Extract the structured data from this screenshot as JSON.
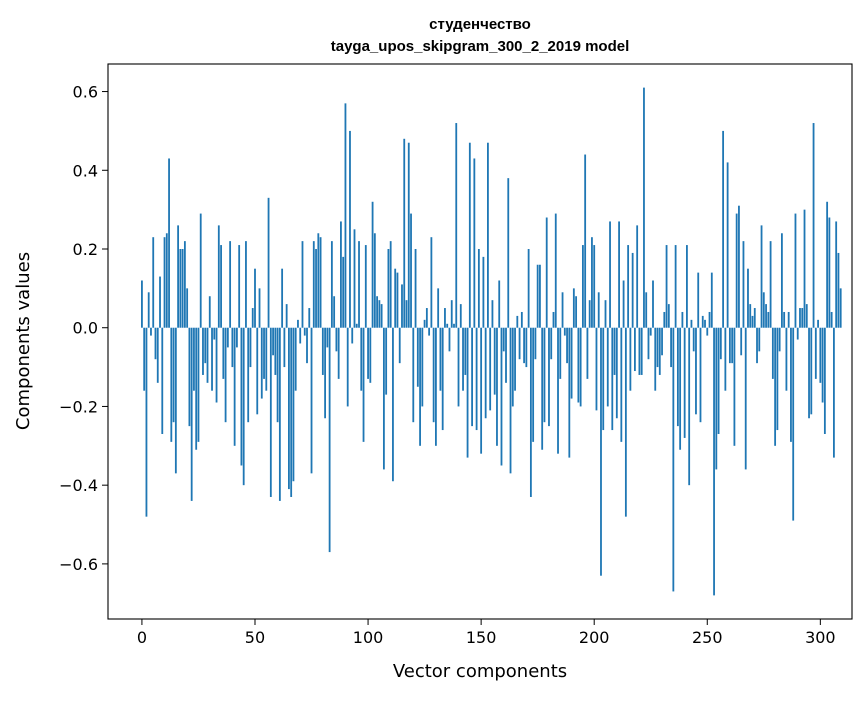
{
  "chart_data": {
    "type": "bar",
    "title_line1": "студенчество",
    "title_line2": "tayga_upos_skipgram_300_2_2019 model",
    "xlabel": "Vector components",
    "ylabel": "Components values",
    "xlim": [
      -15,
      314
    ],
    "ylim": [
      -0.74,
      0.67
    ],
    "xticks": [
      0,
      50,
      100,
      150,
      200,
      250,
      300
    ],
    "xtick_labels": [
      "0",
      "50",
      "100",
      "150",
      "200",
      "250",
      "300"
    ],
    "yticks": [
      -0.6,
      -0.4,
      -0.2,
      0.0,
      0.2,
      0.4,
      0.6
    ],
    "ytick_labels": [
      "−0.6",
      "−0.4",
      "−0.2",
      "0.0",
      "0.2",
      "0.4",
      "0.6"
    ],
    "grid": false,
    "legend": "none",
    "bar_color": "#1f77b4",
    "values": [
      0.12,
      -0.16,
      -0.48,
      0.09,
      -0.02,
      0.23,
      -0.08,
      -0.14,
      0.13,
      -0.27,
      0.23,
      0.24,
      0.43,
      -0.29,
      -0.24,
      -0.37,
      0.26,
      0.2,
      0.2,
      0.22,
      0.1,
      -0.25,
      -0.44,
      -0.16,
      -0.31,
      -0.29,
      0.29,
      -0.12,
      -0.09,
      -0.14,
      0.08,
      -0.16,
      -0.03,
      -0.19,
      0.26,
      0.21,
      -0.13,
      -0.24,
      -0.05,
      0.22,
      -0.1,
      -0.3,
      -0.05,
      0.21,
      -0.35,
      -0.4,
      0.22,
      -0.24,
      -0.1,
      0.05,
      0.15,
      -0.22,
      0.1,
      -0.18,
      -0.13,
      -0.16,
      0.33,
      -0.43,
      -0.07,
      -0.12,
      -0.24,
      -0.44,
      0.15,
      -0.1,
      0.06,
      -0.41,
      -0.43,
      -0.39,
      -0.16,
      0.02,
      -0.04,
      0.22,
      -0.02,
      -0.09,
      0.05,
      -0.37,
      0.22,
      0.2,
      0.24,
      0.23,
      -0.12,
      -0.23,
      -0.05,
      -0.57,
      0.22,
      0.08,
      -0.06,
      -0.13,
      0.27,
      0.18,
      0.57,
      -0.2,
      0.5,
      -0.04,
      0.25,
      0.01,
      0.22,
      -0.16,
      -0.29,
      0.21,
      -0.13,
      -0.14,
      0.32,
      0.24,
      0.08,
      0.07,
      0.06,
      -0.36,
      -0.17,
      0.2,
      0.22,
      -0.39,
      0.15,
      0.14,
      -0.09,
      0.11,
      0.48,
      0.07,
      0.47,
      0.29,
      -0.24,
      0.2,
      -0.15,
      -0.3,
      -0.2,
      0.02,
      0.05,
      -0.02,
      0.23,
      -0.24,
      -0.3,
      0.1,
      -0.16,
      -0.26,
      0.05,
      0.01,
      -0.06,
      0.07,
      0.01,
      0.52,
      -0.2,
      0.06,
      -0.16,
      -0.12,
      -0.33,
      0.47,
      -0.25,
      0.43,
      -0.26,
      0.2,
      -0.32,
      0.18,
      -0.23,
      0.47,
      -0.21,
      0.07,
      -0.17,
      -0.3,
      0.12,
      -0.35,
      -0.06,
      -0.14,
      0.38,
      -0.37,
      -0.2,
      -0.16,
      0.03,
      -0.08,
      0.04,
      -0.09,
      -0.1,
      0.2,
      -0.43,
      -0.29,
      -0.08,
      0.16,
      0.16,
      -0.31,
      -0.24,
      0.28,
      -0.25,
      -0.08,
      0.04,
      0.29,
      -0.32,
      -0.13,
      0.09,
      -0.02,
      -0.09,
      -0.33,
      -0.18,
      0.1,
      0.08,
      -0.19,
      -0.2,
      0.21,
      0.44,
      -0.13,
      0.07,
      0.23,
      0.21,
      -0.21,
      0.09,
      -0.63,
      -0.26,
      0.07,
      -0.2,
      0.27,
      -0.26,
      -0.12,
      -0.23,
      0.27,
      -0.29,
      0.12,
      -0.48,
      0.21,
      -0.16,
      0.19,
      -0.11,
      0.26,
      -0.12,
      -0.12,
      0.61,
      0.09,
      -0.08,
      -0.02,
      0.12,
      -0.16,
      -0.1,
      -0.12,
      -0.07,
      0.04,
      0.21,
      0.06,
      -0.1,
      -0.67,
      0.21,
      -0.25,
      -0.31,
      0.04,
      -0.28,
      0.21,
      -0.4,
      0.02,
      -0.06,
      -0.22,
      0.14,
      -0.24,
      0.03,
      0.02,
      -0.02,
      0.04,
      0.14,
      -0.68,
      -0.36,
      -0.27,
      -0.08,
      0.5,
      -0.16,
      0.42,
      -0.09,
      -0.09,
      -0.3,
      0.29,
      0.31,
      -0.07,
      0.22,
      -0.36,
      0.15,
      0.06,
      0.03,
      0.05,
      -0.09,
      -0.06,
      0.26,
      0.09,
      0.06,
      0.04,
      0.22,
      -0.13,
      -0.3,
      -0.26,
      -0.06,
      0.24,
      0.04,
      -0.16,
      0.04,
      -0.29,
      -0.49,
      0.29,
      -0.03,
      0.05,
      0.05,
      0.3,
      0.06,
      -0.23,
      -0.22,
      0.52,
      -0.13,
      0.02,
      -0.14,
      -0.19,
      -0.27,
      0.32,
      0.28,
      0.04,
      -0.33,
      0.27,
      0.19,
      0.1
    ]
  }
}
